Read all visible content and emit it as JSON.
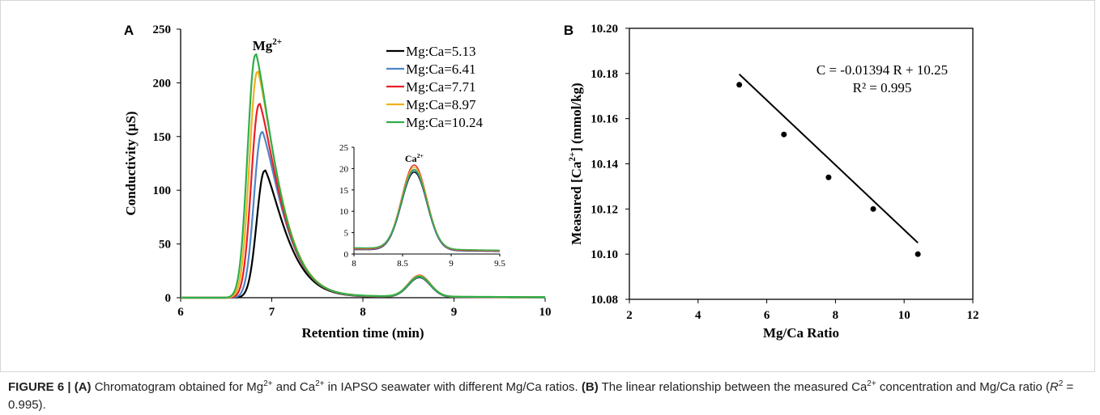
{
  "chart_data": [
    {
      "panel": "A",
      "type": "line",
      "xlabel": "Retention time (min)",
      "ylabel": "Conductivity (μS)",
      "xlim": [
        6,
        10
      ],
      "ylim": [
        0,
        250
      ],
      "xticks": [
        "6",
        "7",
        "8",
        "9",
        "10"
      ],
      "yticks": [
        "0",
        "50",
        "100",
        "150",
        "200",
        "250"
      ],
      "legend_position": "top-right",
      "peak_labels": [
        {
          "base": "Mg",
          "sup": "2+",
          "x": 6.95,
          "y": 235
        },
        {
          "base": "Ca",
          "sup": "2+",
          "x": 8.62,
          "y": 22
        }
      ],
      "series": [
        {
          "name": "Mg:Ca=5.13",
          "color": "#000000",
          "mg_peak_time": 6.92,
          "mg_peak_height": 118,
          "ca_peak_time": 8.62,
          "ca_peak_height": 18.3,
          "baseline": 0.9
        },
        {
          "name": "Mg:Ca=6.41",
          "color": "#4e86c8",
          "mg_peak_time": 6.89,
          "mg_peak_height": 154,
          "ca_peak_time": 8.62,
          "ca_peak_height": 18.6,
          "baseline": 1.0
        },
        {
          "name": "Mg:Ca=7.71",
          "color": "#e8202a",
          "mg_peak_time": 6.86,
          "mg_peak_height": 180,
          "ca_peak_time": 8.62,
          "ca_peak_height": 19.8,
          "baseline": 1.2
        },
        {
          "name": "Mg:Ca=8.97",
          "color": "#f2b01e",
          "mg_peak_time": 6.84,
          "mg_peak_height": 210,
          "ca_peak_time": 8.62,
          "ca_peak_height": 19.2,
          "baseline": 1.4
        },
        {
          "name": "Mg:Ca=10.24",
          "color": "#2fae4a",
          "mg_peak_time": 6.82,
          "mg_peak_height": 226,
          "ca_peak_time": 8.62,
          "ca_peak_height": 18.6,
          "baseline": 1.5
        }
      ],
      "inset": {
        "xlim": [
          8,
          9.5
        ],
        "ylim": [
          0,
          25
        ],
        "xticks": [
          "8",
          "8.5",
          "9",
          "9.5"
        ],
        "yticks": [
          "0",
          "5",
          "10",
          "15",
          "20",
          "25"
        ]
      }
    },
    {
      "panel": "B",
      "type": "scatter",
      "xlabel": "Mg/Ca Ratio",
      "ylabel_base": "Measured [Ca",
      "ylabel_sup": "2+",
      "ylabel_end": "]  (mmol/kg)",
      "xlim": [
        2,
        12
      ],
      "ylim": [
        10.08,
        10.2
      ],
      "xticks": [
        "2",
        "4",
        "6",
        "8",
        "10",
        "12"
      ],
      "yticks": [
        "10.08",
        "10.10",
        "10.12",
        "10.14",
        "10.16",
        "10.18",
        "10.20"
      ],
      "x": [
        5.2,
        6.5,
        7.8,
        9.1,
        10.4
      ],
      "y": [
        10.175,
        10.153,
        10.134,
        10.12,
        10.1
      ],
      "trendline": {
        "slope": -0.01394,
        "intercept": 10.25
      },
      "equation": "C = -0.01394 R + 10.25",
      "r2": "R² = 0.995"
    }
  ],
  "panel_labels": {
    "a": "A",
    "b": "B"
  },
  "caption": {
    "fig": "FIGURE 6 |",
    "a_tag": "(A)",
    "a_text1": " Chromatogram obtained for Mg",
    "sup1": "2+",
    "a_text2": " and Ca",
    "sup2": "2+",
    "a_text3": " in IAPSO seawater with different Mg/Ca ratios. ",
    "b_tag": "(B)",
    "b_text1": " The linear relationship between the measured Ca",
    "sup3": "2+",
    "b_text2": " concentration and Mg/Ca ratio (",
    "r_italic": "R",
    "sup4": "2",
    "b_text3": " = 0.995)."
  }
}
